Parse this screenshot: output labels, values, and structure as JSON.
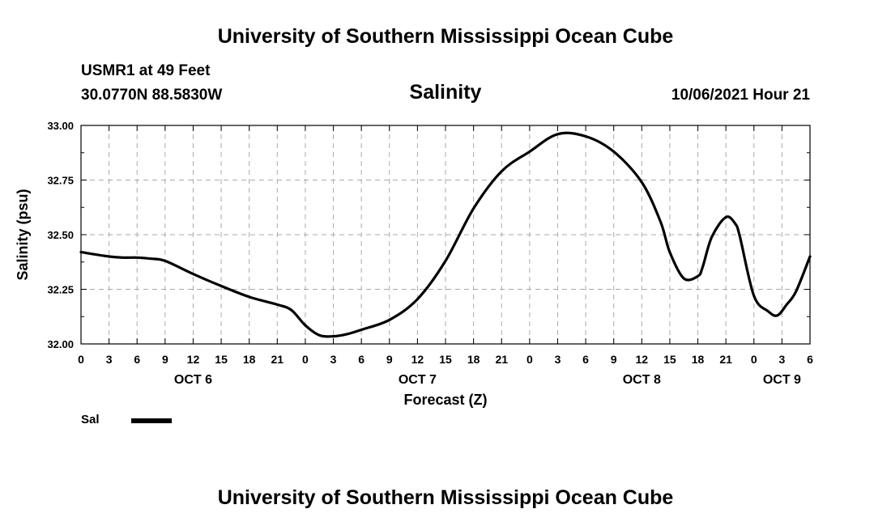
{
  "header": {
    "top_title": "University of Southern Mississippi Ocean Cube",
    "bottom_title": "University of Southern Mississippi Ocean Cube",
    "station": "USMR1 at 49 Feet",
    "location": "30.0770N  88.5830W",
    "datetime": "10/06/2021 Hour 21"
  },
  "chart_data": {
    "type": "line",
    "title": "Salinity",
    "xlabel": "Forecast (Z)",
    "ylabel": "Salinity (psu)",
    "ylim": [
      32.0,
      33.0
    ],
    "y_ticks": [
      "32.00",
      "32.25",
      "32.50",
      "32.75",
      "33.00"
    ],
    "x_range_hours": [
      0,
      78
    ],
    "x_tick_labels": [
      "0",
      "3",
      "6",
      "9",
      "12",
      "15",
      "18",
      "21",
      "0",
      "3",
      "6",
      "9",
      "12",
      "15",
      "18",
      "21",
      "0",
      "3",
      "6",
      "9",
      "12",
      "15",
      "18",
      "21",
      "0",
      "3",
      "6"
    ],
    "date_labels": [
      {
        "label": "OCT 6",
        "hour": 12
      },
      {
        "label": "OCT 7",
        "hour": 36
      },
      {
        "label": "OCT 8",
        "hour": 60
      },
      {
        "label": "OCT 9",
        "hour": 75
      }
    ],
    "grid": true,
    "series": [
      {
        "name": "Sal",
        "x": [
          0,
          3,
          4.5,
          6,
          7.5,
          9,
          12,
          15,
          18,
          21,
          22.5,
          24,
          25.5,
          27,
          28.5,
          30,
          33,
          36,
          39,
          42,
          45,
          48,
          51,
          54,
          57,
          60,
          62,
          63,
          64.5,
          66,
          66.5,
          67.5,
          69,
          70,
          70.5,
          72,
          73.5,
          74.5,
          75.5,
          76.5,
          78
        ],
        "y": [
          32.42,
          32.4,
          32.395,
          32.395,
          32.39,
          32.38,
          32.32,
          32.265,
          32.215,
          32.18,
          32.155,
          32.085,
          32.04,
          32.035,
          32.045,
          32.065,
          32.11,
          32.205,
          32.38,
          32.62,
          32.79,
          32.88,
          32.96,
          32.95,
          32.88,
          32.74,
          32.56,
          32.42,
          32.3,
          32.31,
          32.35,
          32.49,
          32.58,
          32.55,
          32.49,
          32.22,
          32.15,
          32.13,
          32.18,
          32.24,
          32.4
        ]
      }
    ],
    "legend": [
      {
        "label": "Sal",
        "color": "#000000"
      }
    ],
    "legend_position": "bottom-left"
  }
}
